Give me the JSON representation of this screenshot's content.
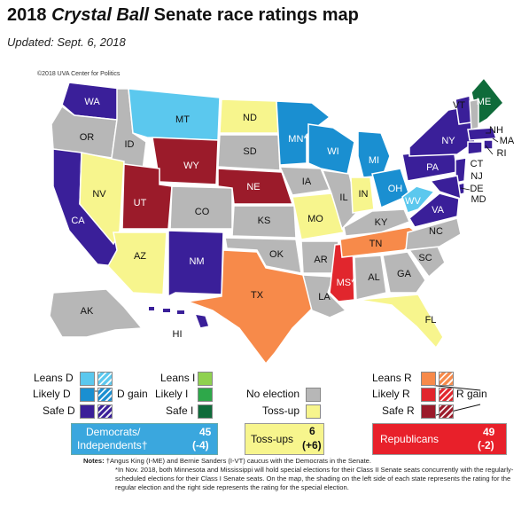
{
  "title_prefix": "2018 ",
  "title_italic": "Crystal Ball",
  "title_suffix": " Senate race ratings map",
  "updated": "Updated: Sept. 6, 2018",
  "copyright": "©2018 UVA Center for Politics",
  "colors": {
    "leans_d": "#5bc8ee",
    "likely_d": "#1a8fd1",
    "safe_d": "#3a1f99",
    "leans_i": "#8fd14f",
    "likely_i": "#2ea84a",
    "safe_i": "#0f6b3a",
    "no_election": "#b7b7b7",
    "toss_up": "#f7f58d",
    "leans_r": "#f78a4a",
    "likely_r": "#e1262d",
    "safe_r": "#9b1b2a"
  },
  "states": {
    "WA": "WA",
    "OR": "OR",
    "CA": "CA",
    "ID": "ID",
    "NV": "NV",
    "MT": "MT",
    "WY": "WY",
    "UT": "UT",
    "AZ": "AZ",
    "CO": "CO",
    "NM": "NM",
    "ND": "ND",
    "SD": "SD",
    "NE": "NE",
    "KS": "KS",
    "OK": "OK",
    "TX": "TX",
    "MN": "MN*",
    "IA": "IA",
    "MO": "MO",
    "AR": "AR",
    "LA": "LA",
    "WI": "WI",
    "IL": "IL",
    "MS": "MS*",
    "MI": "MI",
    "IN": "IN",
    "KY": "KY",
    "TN": "TN",
    "AL": "AL",
    "OH": "OH",
    "GA": "GA",
    "FL": "FL",
    "SC": "SC",
    "NC": "NC",
    "VA": "VA",
    "WV": "WV",
    "PA": "PA",
    "NY": "NY",
    "VT": "VT",
    "ME": "ME",
    "NH": "NH",
    "MA": "MA",
    "RI": "RI",
    "CT": "CT",
    "NJ": "NJ",
    "DE": "DE",
    "MD": "MD",
    "AK": "AK",
    "HI": "HI"
  },
  "legend": {
    "leans_d": "Leans D",
    "likely_d": "Likely D",
    "safe_d": "Safe D",
    "d_gain": "D gain",
    "leans_i": "Leans I",
    "likely_i": "Likely I",
    "safe_i": "Safe I",
    "no_election": "No election",
    "toss_up": "Toss-up",
    "leans_r": "Leans R",
    "likely_r": "Likely R",
    "safe_r": "Safe R",
    "r_gain": "R gain"
  },
  "totals": {
    "dem_label_1": "Democrats/",
    "dem_label_2": "Independents†",
    "dem_count": "45",
    "dem_change": "(-4)",
    "toss_label": "Toss-ups",
    "toss_count": "6",
    "toss_change": "(+6)",
    "rep_label": "Republicans",
    "rep_count": "49",
    "rep_change": "(-2)"
  },
  "notes": {
    "label": "Notes:",
    "line1": "†Angus King (I-ME) and Bernie Sanders (I-VT) caucus with the Democrats in the Senate.",
    "line2": "*In Nov. 2018, both Minnesota and Mississippi will hold special elections for their Class II Senate seats concurrently with the regularly-scheduled elections for their Class I Senate seats. On the map, the shading on the left side of each state represents the rating for the regular election and the right side represents the rating for the special election."
  }
}
